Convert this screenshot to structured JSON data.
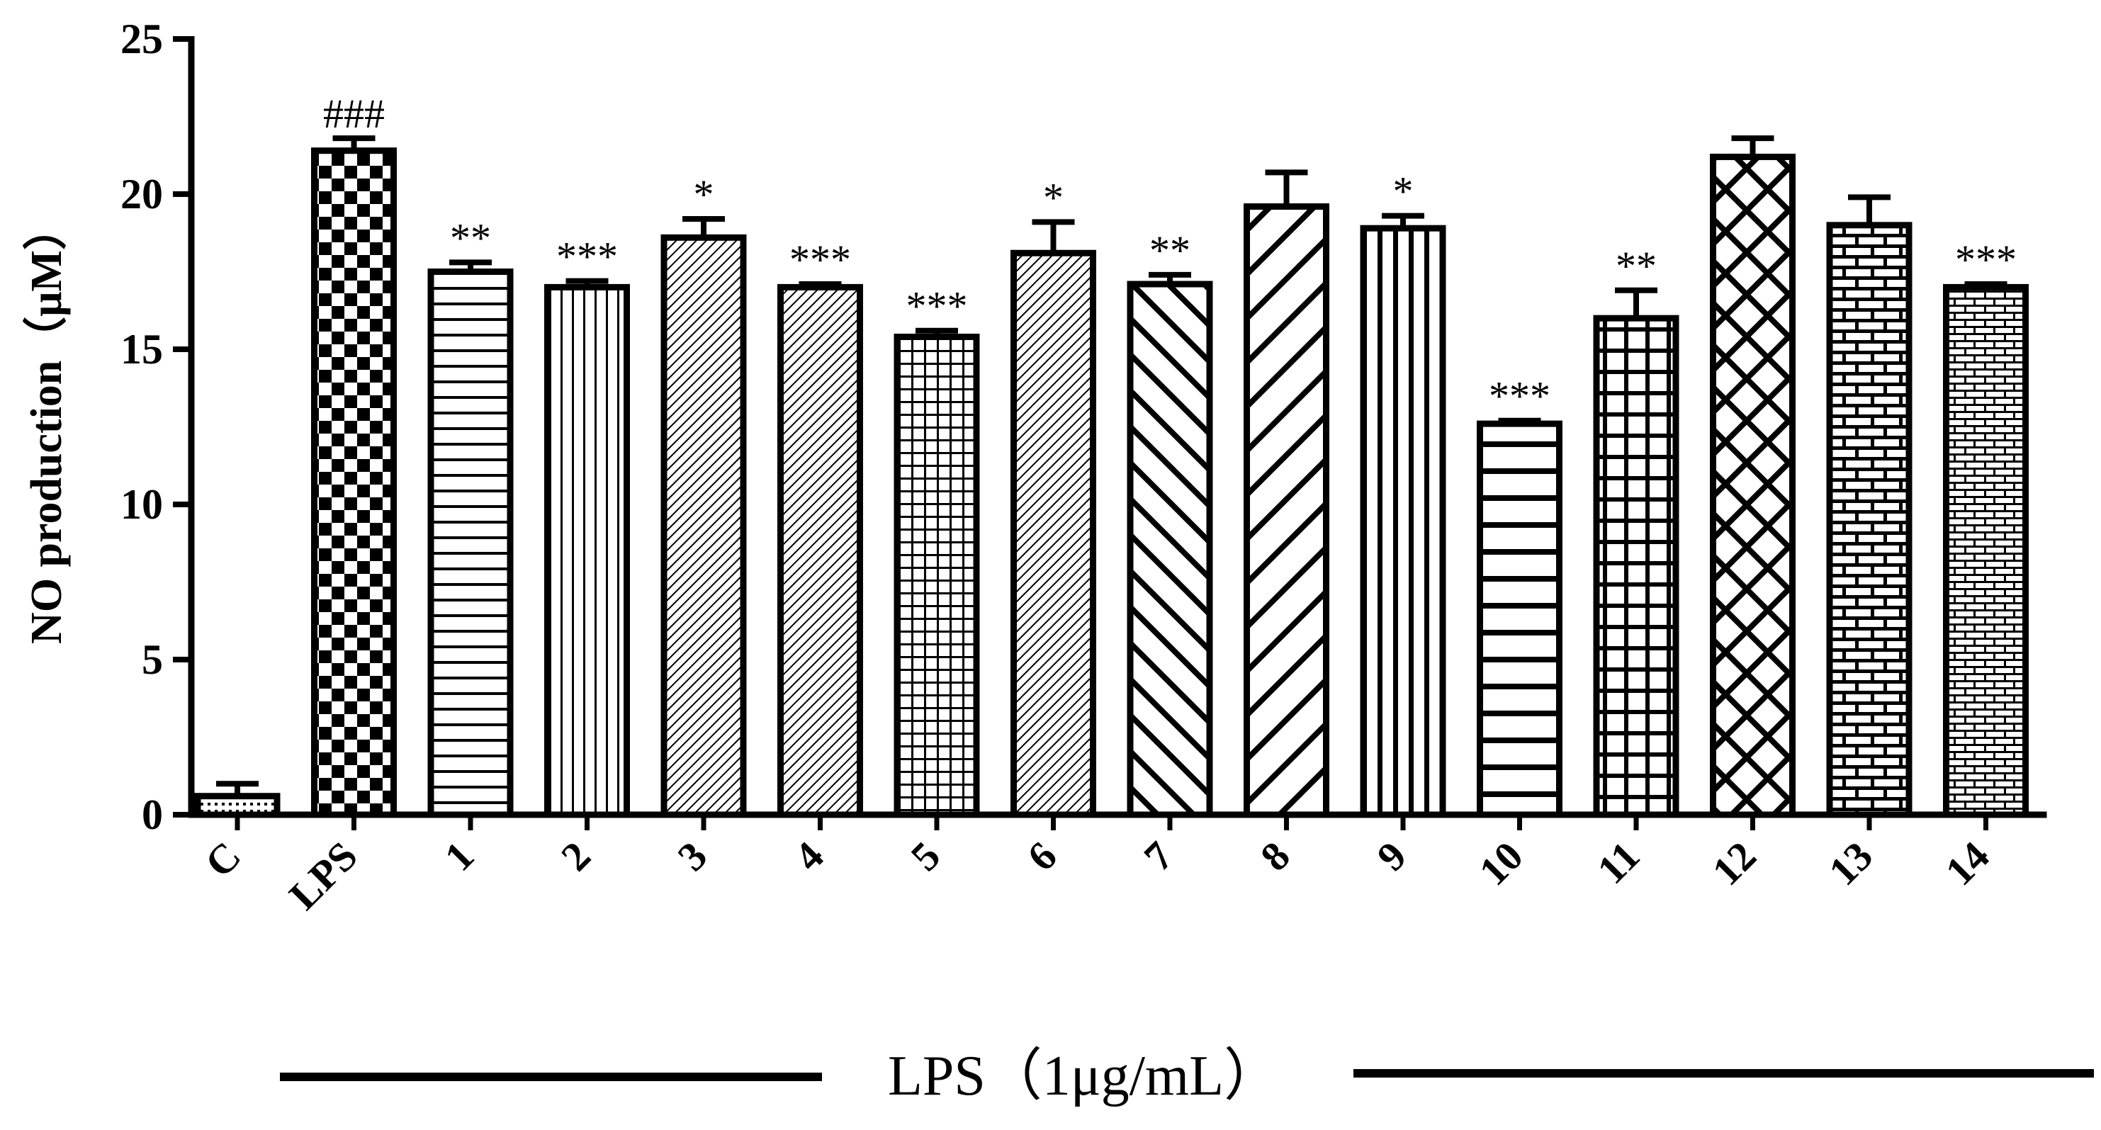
{
  "chart_data": {
    "type": "bar",
    "ylabel": "NO production（μM）",
    "xlabel": "LPS（1μg/mL）",
    "ylim": [
      0,
      25
    ],
    "yticks": [
      0,
      5,
      10,
      15,
      20,
      25
    ],
    "categories": [
      "C",
      "LPS",
      "1",
      "2",
      "3",
      "4",
      "5",
      "6",
      "7",
      "8",
      "9",
      "10",
      "11",
      "12",
      "13",
      "14"
    ],
    "values": [
      0.6,
      21.4,
      17.5,
      17.0,
      18.6,
      17.0,
      15.4,
      18.1,
      17.1,
      19.6,
      18.9,
      12.6,
      16.0,
      21.2,
      19.0,
      17.0
    ],
    "errors": [
      0.4,
      0.4,
      0.3,
      0.2,
      0.6,
      0.1,
      0.2,
      1.0,
      0.3,
      1.1,
      0.4,
      0.1,
      0.9,
      0.6,
      0.9,
      0.1
    ],
    "annotations": [
      "",
      "###",
      "**",
      "***",
      "*",
      "***",
      "***",
      "*",
      "**",
      "",
      "*",
      "***",
      "**",
      "",
      "",
      "***"
    ],
    "patterns": [
      "dots",
      "checker",
      "hlines",
      "vlines",
      "diag-fine",
      "diag-fine",
      "grid-fine",
      "diag-fine",
      "diag-back",
      "diag-fwd",
      "vlines-thick",
      "hlines-thick",
      "grid-coarse",
      "crosshatch",
      "brick",
      "brick-fine"
    ]
  }
}
